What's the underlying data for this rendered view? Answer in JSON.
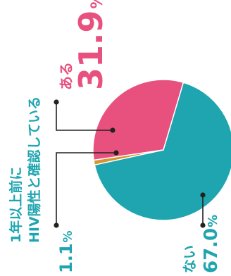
{
  "chart_data": {
    "type": "pie",
    "slices": [
      {
        "name": "ある",
        "value": 31.9,
        "value_label": "31.9",
        "unit": "%",
        "color": "#e8517e"
      },
      {
        "name": "1年以上前にHIV陽性と確認している",
        "name_lines": [
          "1年以上前に",
          "HIV陽性と確認している"
        ],
        "value": 1.1,
        "value_label": "1.1",
        "unit": "%",
        "color": "#d4952f"
      },
      {
        "name": "ない",
        "value": 67.0,
        "value_label": "67.0",
        "unit": "%",
        "color": "#1ea5b0"
      }
    ],
    "orientation": "rotated-90-ccw"
  }
}
